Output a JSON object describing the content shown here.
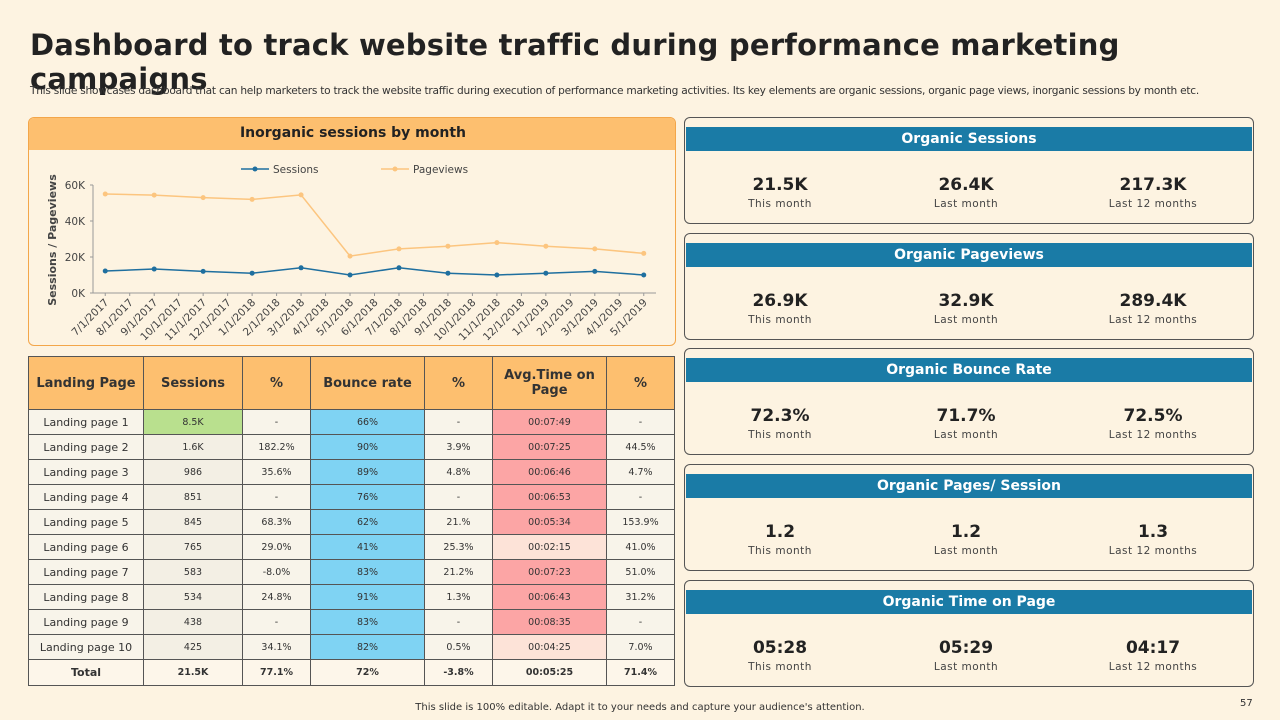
{
  "header": {
    "title": "Dashboard to track website traffic during performance marketing campaigns",
    "subtitle": "This slide showcases dashboard that can help marketers to track the website traffic during execution of performance marketing activities. Its key elements are organic sessions, organic page views, inorganic sessions by month etc."
  },
  "chart_data": {
    "type": "line",
    "title": "Inorganic sessions by month",
    "y_label": "Sessions / Pageviews",
    "xticks": [
      "7/1/2017",
      "8/1/2017",
      "9/1/2017",
      "10/1/2017",
      "11/1/2017",
      "12/1/2017",
      "1/1/2018",
      "2/1/2018",
      "3/1/2018",
      "4/1/2018",
      "5/1/2018",
      "6/1/2018",
      "7/1/2018",
      "8/1/2018",
      "9/1/2018",
      "10/1/2018",
      "11/1/2018",
      "12/1/2018",
      "1/1/2019",
      "2/1/2019",
      "3/1/2019",
      "4/1/2019",
      "5/1/2019"
    ],
    "x": [
      "7/1/2017",
      "9/1/2017",
      "11/1/2017",
      "1/1/2018",
      "3/1/2018",
      "5/1/2018",
      "7/1/2018",
      "9/1/2018",
      "11/1/2018",
      "1/1/2019",
      "3/1/2019",
      "5/1/2019"
    ],
    "series": [
      {
        "name": "Sessions",
        "color": "#1f6f9f",
        "values": [
          12200,
          13300,
          12000,
          11000,
          14000,
          10000,
          14000,
          11000,
          10000,
          11000,
          12000,
          10000
        ]
      },
      {
        "name": "Pageviews",
        "color": "#fcc57f",
        "values": [
          55000,
          54400,
          53000,
          52000,
          54500,
          20500,
          24500,
          26000,
          28000,
          26000,
          24500,
          22000
        ]
      }
    ],
    "ylim": [
      0,
      60000
    ],
    "yticks": [
      {
        "value": 0,
        "label": "0K"
      },
      {
        "value": 20000,
        "label": "20K"
      },
      {
        "value": 40000,
        "label": "40K"
      },
      {
        "value": 60000,
        "label": "60K"
      }
    ],
    "legend": "top"
  },
  "table": {
    "columns": [
      "Landing Page",
      "Sessions",
      "%",
      "Bounce rate",
      "%",
      "Avg.Time on Page",
      "%"
    ],
    "rows": [
      [
        "Landing page 1",
        "8.5K",
        "-",
        "66%",
        "-",
        "00:07:49",
        "-"
      ],
      [
        "Landing page 2",
        "1.6K",
        "182.2%",
        "90%",
        "3.9%",
        "00:07:25",
        "44.5%"
      ],
      [
        "Landing page 3",
        "986",
        "35.6%",
        "89%",
        "4.8%",
        "00:06:46",
        "4.7%"
      ],
      [
        "Landing page 4",
        "851",
        "-",
        "76%",
        "-",
        "00:06:53",
        "-"
      ],
      [
        "Landing page 5",
        "845",
        "68.3%",
        "62%",
        "21.%",
        "00:05:34",
        "153.9%"
      ],
      [
        "Landing page 6",
        "765",
        "29.0%",
        "41%",
        "25.3%",
        "00:02:15",
        "41.0%"
      ],
      [
        "Landing page 7",
        "583",
        "-8.0%",
        "83%",
        "21.2%",
        "00:07:23",
        "51.0%"
      ],
      [
        "Landing page 8",
        "534",
        "24.8%",
        "91%",
        "1.3%",
        "00:06:43",
        "31.2%"
      ],
      [
        "Landing page 9",
        "438",
        "-",
        "83%",
        "-",
        "00:08:35",
        "-"
      ],
      [
        "Landing page 10",
        "425",
        "34.1%",
        "82%",
        "0.5%",
        "00:04:25",
        "7.0%"
      ]
    ],
    "total": [
      "Total",
      "21.5K",
      "77.1%",
      "72%",
      "-3.8%",
      "00:05:25",
      "71.4%"
    ]
  },
  "kpis": [
    {
      "title": "Organic Sessions",
      "items": [
        {
          "value": "21.5K",
          "label": "This month"
        },
        {
          "value": "26.4K",
          "label": "Last month"
        },
        {
          "value": "217.3K",
          "label": "Last 12 months"
        }
      ]
    },
    {
      "title": "Organic Pageviews",
      "items": [
        {
          "value": "26.9K",
          "label": "This month"
        },
        {
          "value": "32.9K",
          "label": "Last month"
        },
        {
          "value": "289.4K",
          "label": "Last 12 months"
        }
      ]
    },
    {
      "title": "Organic Bounce Rate",
      "items": [
        {
          "value": "72.3%",
          "label": "This month"
        },
        {
          "value": "71.7%",
          "label": "Last month"
        },
        {
          "value": "72.5%",
          "label": "Last 12 months"
        }
      ]
    },
    {
      "title": "Organic Pages/ Session",
      "items": [
        {
          "value": "1.2",
          "label": "This month"
        },
        {
          "value": "1.2",
          "label": "Last month"
        },
        {
          "value": "1.3",
          "label": "Last 12 months"
        }
      ]
    },
    {
      "title": "Organic Time on Page",
      "items": [
        {
          "value": "05:28",
          "label": "This month"
        },
        {
          "value": "05:29",
          "label": "Last month"
        },
        {
          "value": "04:17",
          "label": "Last 12 months"
        }
      ]
    }
  ],
  "footer": {
    "note": "This slide is 100% editable. Adapt it to your needs and capture your audience's attention.",
    "page": "57"
  }
}
